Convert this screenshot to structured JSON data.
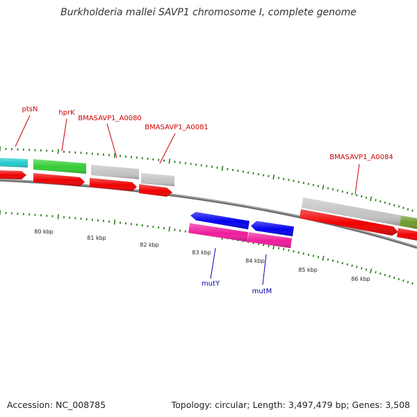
{
  "title": "Burkholderia mallei SAVP1 chromosome I, complete genome",
  "footer": {
    "accession": "Accession: NC_008785",
    "topology": "Topology: circular; Length: 3,497,479 bp; Genes: 3,508"
  },
  "colors": {
    "label_forward": "#cc0000",
    "label_reverse": "#0000aa",
    "backbone": "#808080",
    "tick": "#2e7d1e",
    "cds_red": "#ee0000",
    "cds_green": "#33cc33",
    "cds_gray": "#c4c4c4",
    "cds_cyan": "#22cccc",
    "cds_blue": "#0000ee",
    "cds_magenta": "#ee1c9c",
    "cds_olive": "#6b9a2a"
  },
  "gene_labels_forward": [
    "ptsN",
    "hprK",
    "BMASAVP1_A0080",
    "BMASAVP1_A0081",
    "BMASAVP1_A0084"
  ],
  "gene_labels_reverse": [
    "mutY",
    "mutM"
  ],
  "scale_labels": [
    "80 kbp",
    "81 kbp",
    "82 kbp",
    "83 kbp",
    "84 kbp",
    "85 kbp",
    "86 kbp"
  ]
}
